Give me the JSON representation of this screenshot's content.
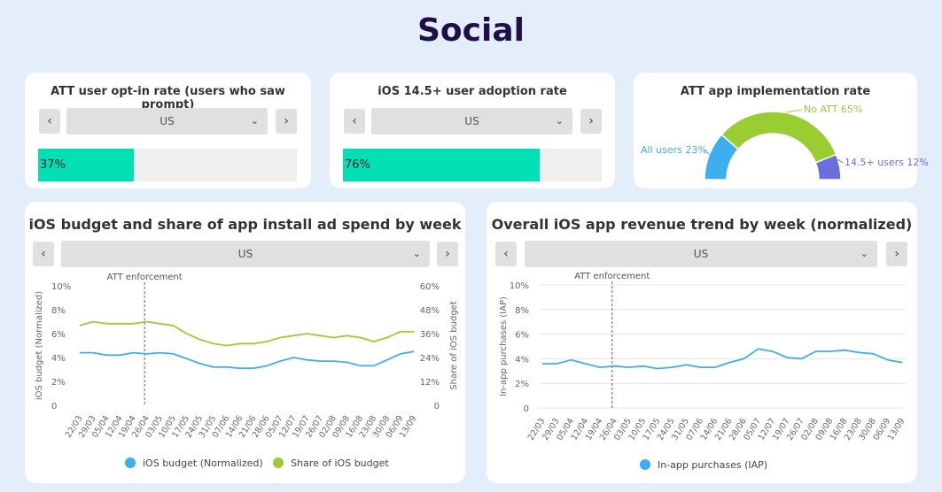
{
  "page_title": "Social",
  "colors": {
    "teal_bar": "#00e0b5",
    "blue": "#3daff0",
    "green": "#9acd32",
    "purple": "#6a6fdc",
    "dark_title": "#1d1147"
  },
  "icons": {
    "prev": "chevron-left-icon",
    "next": "chevron-right-icon",
    "dropdown": "chevron-down-icon"
  },
  "nav": {
    "prev": "‹",
    "next": "›",
    "dropdown": "⌄"
  },
  "card1": {
    "title": "ATT user opt-in rate (users who saw prompt)",
    "select_value": "US",
    "bar_label": "37%",
    "bar_value": 0.37
  },
  "card2": {
    "title": "iOS 14.5+ user adoption rate",
    "select_value": "US",
    "bar_label": "76%",
    "bar_value": 0.76
  },
  "card3": {
    "title": "ATT app implementation rate",
    "chart_data": {
      "type": "pie",
      "categories": [
        "All users",
        "No ATT",
        "14.5+ users"
      ],
      "values": [
        23,
        65,
        12
      ],
      "labels": [
        "All users 23%",
        "No ATT 65%",
        "14.5+ users 12%"
      ]
    }
  },
  "card4": {
    "title": "iOS budget and share of app install ad spend by week",
    "select_value": "US",
    "annotation": "ATT enforcement",
    "ylabel_left": "iOS budget (Normalized)",
    "ylabel_right": "Share of iOS budget",
    "y_ticks_left": [
      "10%",
      "8%",
      "6%",
      "4%",
      "2%",
      "0"
    ],
    "y_ticks_right": [
      "60%",
      "48%",
      "36%",
      "24%",
      "12%",
      "0"
    ],
    "legend": [
      "iOS budget (Normalized)",
      "Share of iOS budget"
    ],
    "chart_data": {
      "type": "line",
      "x": [
        "22/03",
        "29/03",
        "05/04",
        "12/04",
        "19/04",
        "26/04",
        "03/05",
        "10/05",
        "17/05",
        "24/05",
        "31/05",
        "07/06",
        "14/06",
        "21/06",
        "28/06",
        "05/07",
        "12/07",
        "19/07",
        "26/07",
        "02/08",
        "09/08",
        "16/08",
        "23/08",
        "30/08",
        "06/09",
        "13/09"
      ],
      "annotation_x": "26/04",
      "ylim_left": [
        0,
        10
      ],
      "ylim_right": [
        0,
        60
      ],
      "series": [
        {
          "name": "iOS budget (Normalized)",
          "axis": "left",
          "values": [
            4.4,
            4.4,
            4.2,
            4.2,
            4.4,
            4.3,
            4.4,
            4.3,
            3.9,
            3.5,
            3.2,
            3.2,
            3.1,
            3.1,
            3.3,
            3.7,
            4.0,
            3.8,
            3.7,
            3.7,
            3.6,
            3.3,
            3.3,
            3.8,
            4.3,
            4.5
          ]
        },
        {
          "name": "Share of iOS budget",
          "axis": "right",
          "values": [
            40,
            42,
            41,
            41,
            41,
            42,
            41,
            40,
            36,
            33,
            31,
            30,
            31,
            31,
            32,
            34,
            35,
            36,
            35,
            34,
            35,
            34,
            32,
            34,
            37,
            37
          ]
        }
      ]
    }
  },
  "card5": {
    "title": "Overall iOS app revenue trend by week (normalized)",
    "select_value": "US",
    "annotation": "ATT enforcement",
    "ylabel": "In-app purchases (IAP)",
    "y_ticks": [
      "10%",
      "8%",
      "6%",
      "4%",
      "2%",
      "0"
    ],
    "legend": [
      "In-app purchases (IAP)"
    ],
    "chart_data": {
      "type": "line",
      "x": [
        "22/03",
        "29/03",
        "05/04",
        "12/04",
        "19/04",
        "26/04",
        "03/05",
        "10/05",
        "17/05",
        "24/05",
        "31/05",
        "07/06",
        "14/06",
        "21/06",
        "28/06",
        "05/07",
        "12/07",
        "19/07",
        "26/07",
        "02/08",
        "09/08",
        "16/08",
        "23/08",
        "30/08",
        "06/09",
        "13/09"
      ],
      "annotation_x": "26/04",
      "ylim": [
        0,
        10
      ],
      "series": [
        {
          "name": "In-app purchases (IAP)",
          "values": [
            3.6,
            3.6,
            3.9,
            3.6,
            3.3,
            3.4,
            3.3,
            3.4,
            3.2,
            3.3,
            3.5,
            3.3,
            3.3,
            3.7,
            4.0,
            4.8,
            4.6,
            4.1,
            4.0,
            4.6,
            4.6,
            4.7,
            4.5,
            4.4,
            3.9,
            3.7
          ]
        }
      ]
    }
  }
}
